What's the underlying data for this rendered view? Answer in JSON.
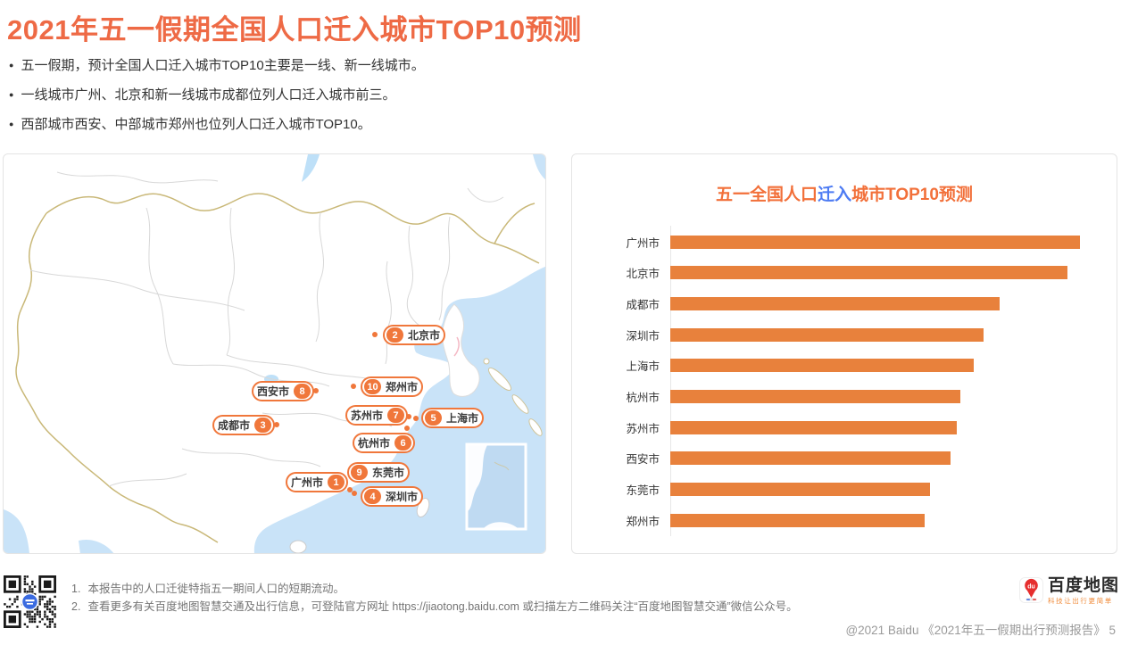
{
  "page": {
    "title": "2021年五一假期全国人口迁入城市TOP10预测",
    "bullets": [
      "五一假期，预计全国人口迁入城市TOP10主要是一线、新一线城市。",
      "一线城市广州、北京和新一线城市成都位列人口迁入城市前三。",
      "西部城市西安、中部城市郑州也位列人口迁入城市TOP10。"
    ]
  },
  "map": {
    "markers": [
      {
        "rank": "1",
        "city": "广州市"
      },
      {
        "rank": "2",
        "city": "北京市"
      },
      {
        "rank": "3",
        "city": "成都市"
      },
      {
        "rank": "4",
        "city": "深圳市"
      },
      {
        "rank": "5",
        "city": "上海市"
      },
      {
        "rank": "6",
        "city": "杭州市"
      },
      {
        "rank": "7",
        "city": "苏州市"
      },
      {
        "rank": "8",
        "city": "西安市"
      },
      {
        "rank": "9",
        "city": "东莞市"
      },
      {
        "rank": "10",
        "city": "郑州市"
      }
    ]
  },
  "chart_data": {
    "type": "bar",
    "orientation": "horizontal",
    "title": "五一全国人口迁入城市TOP10预测",
    "title_parts": {
      "prefix": "五一全国人口",
      "highlight": "迁入",
      "suffix": "城市TOP10预测"
    },
    "categories": [
      "广州市",
      "北京市",
      "成都市",
      "深圳市",
      "上海市",
      "杭州市",
      "苏州市",
      "西安市",
      "东莞市",
      "郑州市"
    ],
    "values": [
      100,
      96.9,
      80.4,
      76.5,
      74.1,
      70.8,
      69.9,
      68.4,
      63.4,
      62.1
    ],
    "value_basis": "relative bar length, max = 100 (no numeric axis shown in figure)",
    "xlabel": "",
    "ylabel": "",
    "grid": false,
    "legend": false,
    "bar_color": "#E8813C",
    "title_color": "#F2703A",
    "highlight_color": "#4D7BF3"
  },
  "footer": {
    "notes": [
      "本报告中的人口迁徙特指五一期间人口的短期流动。",
      "查看更多有关百度地图智慧交通及出行信息，可登陆官方网址 https://jiaotong.baidu.com 或扫描左方二维码关注“百度地图智慧交通”微信公众号。"
    ],
    "copyright": "@2021 Baidu 《2021年五一假期出行预测报告》 5",
    "brand": {
      "name": "百度地图",
      "tagline": "科技让出行更简单",
      "pin_text": "du"
    }
  },
  "colors": {
    "title_orange": "#EE6A45",
    "bar_orange": "#E8813C",
    "marker_orange": "#F0773B",
    "highlight_blue": "#4D7BF3",
    "sea_blue": "#C9E3F8",
    "national_border_tan": "#C9B878",
    "province_border_gray": "#D8D8D8",
    "body_text": "#333333",
    "footer_text": "#757575",
    "copyright_text": "#9A9A9A"
  }
}
